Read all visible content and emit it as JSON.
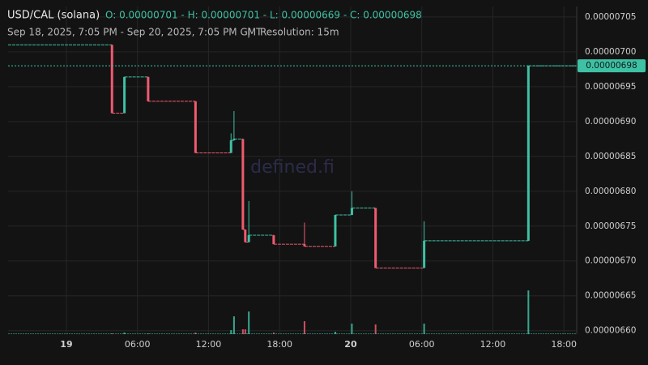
{
  "chart_data": {
    "type": "candlestick",
    "title": "USD/CAL (solana)",
    "ohlc_text": "O: 0.00000701 - H: 0.00000701 - L: 0.00000669 - C: 0.00000698",
    "subtitle": "Sep 18, 2025, 7:05 PM - Sep 20, 2025, 7:05 PM GMT",
    "separator": "|",
    "resolution": "Resolution: 15m",
    "watermark": "defined.fi",
    "last_price": {
      "value": 6.98e-06,
      "label": "0.00000698"
    },
    "up_color": "#3ec1a4",
    "down_color": "#ef5a6f",
    "grid": true,
    "xlim": [
      -4.92,
      43.08
    ],
    "xticks": [
      {
        "value": 0,
        "label": "19"
      },
      {
        "value": 6,
        "label": "06:00"
      },
      {
        "value": 12,
        "label": "12:00"
      },
      {
        "value": 18,
        "label": "18:00"
      },
      {
        "value": 24,
        "label": "20"
      },
      {
        "value": 30,
        "label": "06:00"
      },
      {
        "value": 36,
        "label": "12:00"
      },
      {
        "value": 42,
        "label": "18:00"
      }
    ],
    "ylim": [
      6.595e-06,
      7.065e-06
    ],
    "yticks": [
      {
        "value": 6.6e-06,
        "label": "0.00000660"
      },
      {
        "value": 6.65e-06,
        "label": "0.00000665"
      },
      {
        "value": 6.7e-06,
        "label": "0.00000670"
      },
      {
        "value": 6.75e-06,
        "label": "0.00000675"
      },
      {
        "value": 6.8e-06,
        "label": "0.00000680"
      },
      {
        "value": 6.85e-06,
        "label": "0.00000685"
      },
      {
        "value": 6.9e-06,
        "label": "0.00000690"
      },
      {
        "value": 6.95e-06,
        "label": "0.00000695"
      },
      {
        "value": 7e-06,
        "label": "0.00000700"
      },
      {
        "value": 7.05e-06,
        "label": "0.00000705"
      }
    ],
    "volume_lim": [
      0,
      120
    ],
    "candles": [
      {
        "x": 3.85,
        "open": 7.01e-06,
        "high": 7.01e-06,
        "low": 6.912e-06,
        "close": 6.912e-06,
        "volume": 1
      },
      {
        "x": 4.9,
        "open": 6.912e-06,
        "high": 6.964e-06,
        "low": 6.912e-06,
        "close": 6.964e-06,
        "volume": 2
      },
      {
        "x": 6.9,
        "open": 6.964e-06,
        "high": 6.964e-06,
        "low": 6.929e-06,
        "close": 6.929e-06,
        "volume": 1
      },
      {
        "x": 10.9,
        "open": 6.929e-06,
        "high": 6.929e-06,
        "low": 6.855e-06,
        "close": 6.855e-06,
        "volume": 2
      },
      {
        "x": 13.9,
        "open": 6.855e-06,
        "high": 6.883e-06,
        "low": 6.855e-06,
        "close": 6.873e-06,
        "volume": 5
      },
      {
        "x": 14.15,
        "open": 6.873e-06,
        "high": 6.915e-06,
        "low": 6.873e-06,
        "close": 6.875e-06,
        "volume": 22
      },
      {
        "x": 14.9,
        "open": 6.875e-06,
        "high": 6.875e-06,
        "low": 6.745e-06,
        "close": 6.745e-06,
        "volume": 6
      },
      {
        "x": 15.1,
        "open": 6.745e-06,
        "high": 6.745e-06,
        "low": 6.727e-06,
        "close": 6.727e-06,
        "volume": 6
      },
      {
        "x": 15.4,
        "open": 6.727e-06,
        "high": 6.786e-06,
        "low": 6.727e-06,
        "close": 6.737e-06,
        "volume": 28
      },
      {
        "x": 17.5,
        "open": 6.737e-06,
        "high": 6.737e-06,
        "low": 6.724e-06,
        "close": 6.724e-06,
        "volume": 2
      },
      {
        "x": 20.1,
        "open": 6.724e-06,
        "high": 6.755e-06,
        "low": 6.721e-06,
        "close": 6.721e-06,
        "volume": 16
      },
      {
        "x": 22.7,
        "open": 6.721e-06,
        "high": 6.766e-06,
        "low": 6.721e-06,
        "close": 6.766e-06,
        "volume": 3
      },
      {
        "x": 24.1,
        "open": 6.766e-06,
        "high": 6.8e-06,
        "low": 6.766e-06,
        "close": 6.776e-06,
        "volume": 13
      },
      {
        "x": 26.1,
        "open": 6.776e-06,
        "high": 6.776e-06,
        "low": 6.69e-06,
        "close": 6.69e-06,
        "volume": 12
      },
      {
        "x": 30.2,
        "open": 6.69e-06,
        "high": 6.757e-06,
        "low": 6.69e-06,
        "close": 6.729e-06,
        "volume": 13
      },
      {
        "x": 39.0,
        "open": 6.729e-06,
        "high": 6.98e-06,
        "low": 6.729e-06,
        "close": 6.98e-06,
        "volume": 54
      }
    ]
  }
}
